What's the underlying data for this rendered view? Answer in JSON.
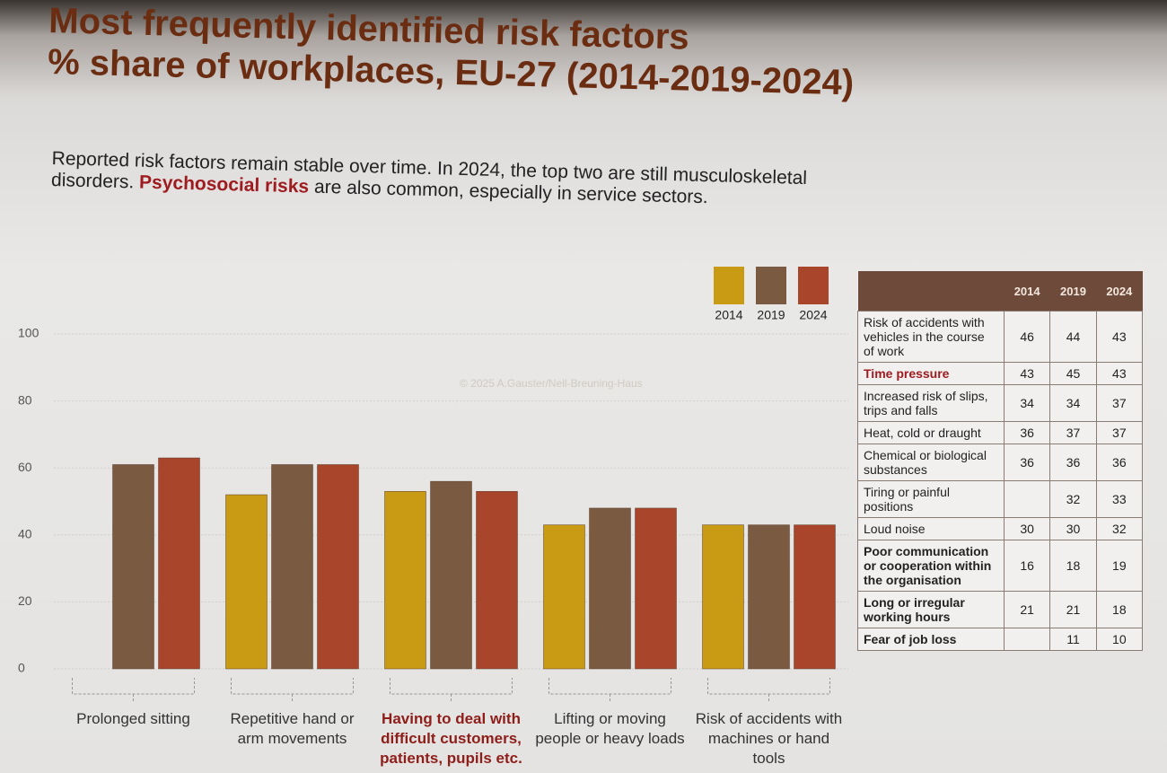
{
  "title": "Most frequently identified risk factors",
  "subtitle": "% share of workplaces, EU-27 (2014-2019-2024)",
  "intro": {
    "part1": "Reported risk factors remain stable over time. In 2024, the top two are still musculoskeletal disorders.",
    "highlight": "Psychosocial risks",
    "part2": "are also common, especially in service sectors."
  },
  "watermark": "© 2025 A.Gauster/Nell-Breuning-Haus",
  "chart_data": {
    "type": "bar",
    "categories": [
      "Prolonged sitting",
      "Repetitive hand or arm movements",
      "Having to deal with difficult customers, patients, pupils etc.",
      "Lifting or moving people or heavy loads",
      "Risk of accidents with machines or hand tools"
    ],
    "series": [
      {
        "name": "2014",
        "color": "#c99a14",
        "values": [
          null,
          52,
          53,
          43,
          43
        ]
      },
      {
        "name": "2019",
        "color": "#7a5a40",
        "values": [
          61,
          61,
          56,
          48,
          43
        ]
      },
      {
        "name": "2024",
        "color": "#a8452a",
        "values": [
          63,
          61,
          53,
          48,
          43
        ]
      }
    ],
    "ylim": [
      0,
      100
    ],
    "yticks": [
      0,
      20,
      40,
      60,
      80,
      100
    ],
    "grid": true,
    "legend": "top-right"
  },
  "table": {
    "columns": [
      "2014",
      "2019",
      "2024"
    ],
    "rows": [
      [
        "Risk of accidents with vehicles in the course of work",
        46,
        44,
        43
      ],
      [
        "Time pressure",
        43,
        45,
        43
      ],
      [
        "Increased risk of slips, trips and falls",
        34,
        34,
        37
      ],
      [
        "Heat, cold or draught",
        36,
        37,
        37
      ],
      [
        "Chemical or biological substances",
        36,
        36,
        36
      ],
      [
        "Tiring or painful positions",
        null,
        32,
        33
      ],
      [
        "Loud noise",
        30,
        30,
        32
      ],
      [
        "Poor communication or cooperation within the organisation",
        16,
        18,
        19
      ],
      [
        "Long or irregular working hours",
        21,
        21,
        18
      ],
      [
        "Fear of job loss",
        null,
        11,
        10
      ]
    ]
  }
}
